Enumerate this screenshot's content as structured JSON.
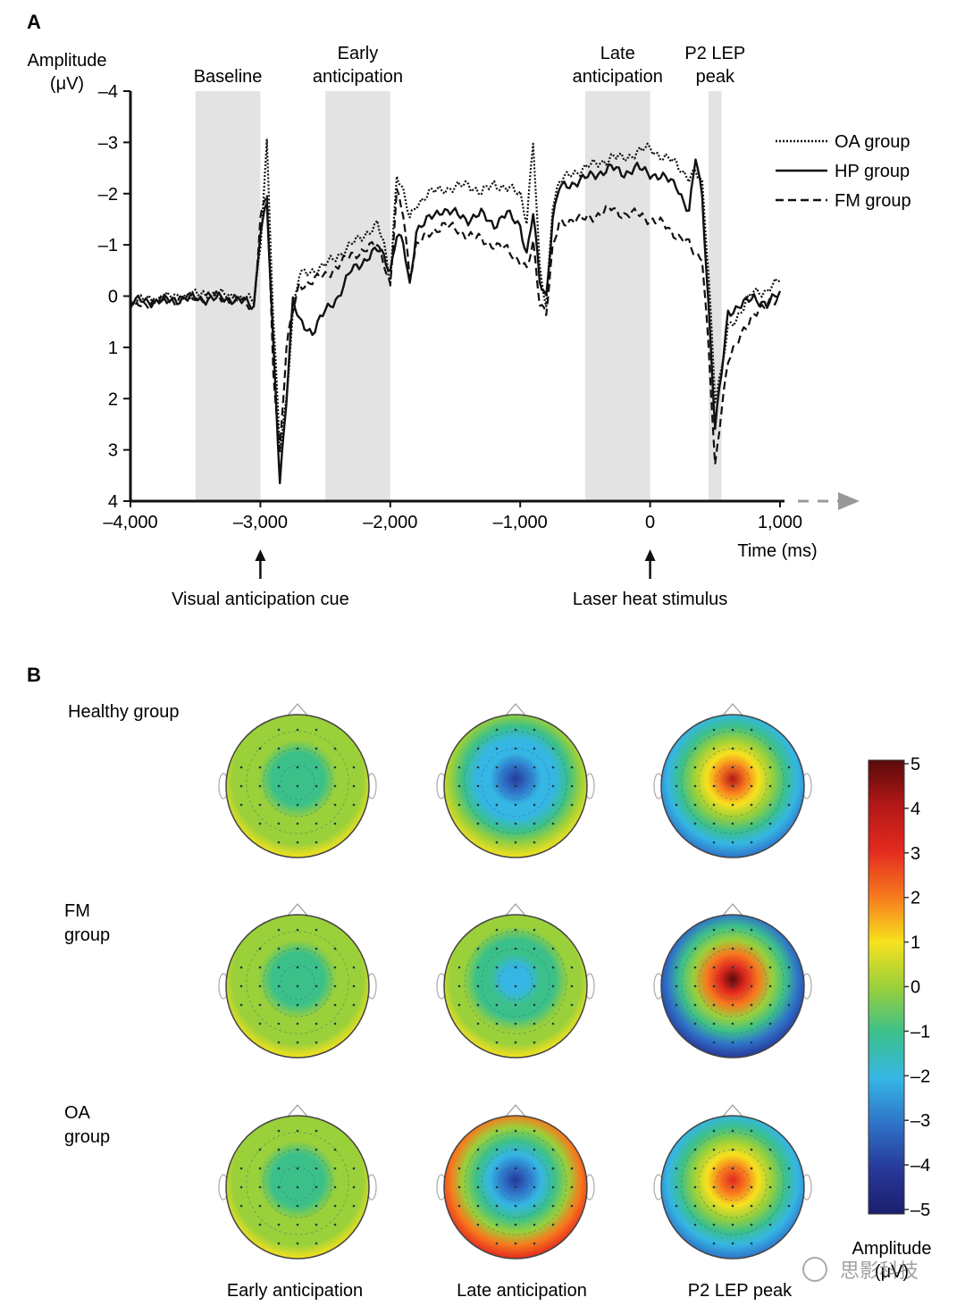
{
  "panel_a": {
    "panel_label": "A",
    "chart_data": {
      "type": "line",
      "xlabel": "Time (ms)",
      "ylabel_line1": "Amplitude",
      "ylabel_line2": "(μV)",
      "xlim": [
        -4000,
        1000
      ],
      "ylim": [
        -4,
        4
      ],
      "y_inverted": true,
      "x_ticks": [
        -4000,
        -3000,
        -2000,
        -1000,
        0,
        1000
      ],
      "x_tick_labels": [
        "–4,000",
        "–3,000",
        "–2,000",
        "–1,000",
        "0",
        "1,000"
      ],
      "y_ticks": [
        -4,
        -3,
        -2,
        -1,
        0,
        1,
        2,
        3,
        4
      ],
      "y_tick_labels": [
        "–4",
        "–3",
        "–2",
        "–1",
        "0",
        "1",
        "2",
        "3",
        "4"
      ],
      "windows": [
        {
          "label": [
            "Baseline"
          ],
          "start": -3500,
          "end": -3000
        },
        {
          "label": [
            "Early",
            "anticipation"
          ],
          "start": -2500,
          "end": -2000
        },
        {
          "label": [
            "Late",
            "anticipation"
          ],
          "start": -500,
          "end": 0
        },
        {
          "label": [
            "P2 LEP",
            "peak"
          ],
          "start": 450,
          "end": 550
        }
      ],
      "annotations": [
        {
          "text": "Visual anticipation cue",
          "x": -3000
        },
        {
          "text": "Laser heat stimulus",
          "x": 0
        }
      ],
      "legend_position": "top-right",
      "series": [
        {
          "name": "OA group",
          "style": "dotted",
          "x": [
            -4000,
            -3800,
            -3600,
            -3400,
            -3200,
            -3050,
            -3000,
            -2950,
            -2900,
            -2850,
            -2800,
            -2750,
            -2700,
            -2600,
            -2500,
            -2400,
            -2300,
            -2200,
            -2100,
            -2050,
            -2000,
            -1950,
            -1900,
            -1850,
            -1800,
            -1700,
            -1600,
            -1500,
            -1400,
            -1300,
            -1200,
            -1100,
            -1000,
            -950,
            -900,
            -850,
            -800,
            -750,
            -700,
            -600,
            -500,
            -400,
            -300,
            -200,
            -100,
            0,
            100,
            200,
            300,
            350,
            400,
            450,
            500,
            550,
            600,
            700,
            800,
            900,
            1000
          ],
          "y": [
            0.1,
            0.05,
            0,
            -0.05,
            0,
            0.1,
            -1.0,
            -3.0,
            0.5,
            3.0,
            2.0,
            0.3,
            -0.4,
            -0.5,
            -0.6,
            -0.8,
            -1.0,
            -1.2,
            -1.4,
            -1.0,
            -0.3,
            -2.4,
            -2.0,
            -1.5,
            -1.8,
            -2.0,
            -2.1,
            -2.1,
            -2.2,
            -2.0,
            -2.2,
            -2.1,
            -2.0,
            -1.5,
            -3.0,
            -0.5,
            0.2,
            -1.8,
            -2.2,
            -2.4,
            -2.5,
            -2.6,
            -2.7,
            -2.7,
            -2.8,
            -2.9,
            -2.7,
            -2.6,
            -2.3,
            -2.4,
            -2.2,
            -0.5,
            2.0,
            1.5,
            0.6,
            0.3,
            -0.1,
            -0.1,
            -0.3
          ]
        },
        {
          "name": "HP group",
          "style": "solid",
          "x": [
            -4000,
            -3800,
            -3600,
            -3400,
            -3200,
            -3050,
            -3000,
            -2950,
            -2900,
            -2850,
            -2800,
            -2750,
            -2700,
            -2600,
            -2500,
            -2400,
            -2300,
            -2200,
            -2100,
            -2050,
            -2000,
            -1950,
            -1900,
            -1850,
            -1800,
            -1700,
            -1600,
            -1500,
            -1400,
            -1300,
            -1200,
            -1100,
            -1000,
            -950,
            -900,
            -850,
            -800,
            -750,
            -700,
            -600,
            -500,
            -400,
            -300,
            -200,
            -100,
            0,
            100,
            200,
            300,
            350,
            400,
            450,
            500,
            550,
            600,
            700,
            800,
            900,
            1000
          ],
          "y": [
            0.1,
            0.1,
            0.05,
            0.05,
            0.05,
            0.2,
            -1.3,
            -1.8,
            1.0,
            3.6,
            2.0,
            0.1,
            0.5,
            0.7,
            0.3,
            0,
            -0.5,
            -0.7,
            -0.9,
            -0.8,
            -0.5,
            -1.2,
            -1.0,
            -0.2,
            -1.3,
            -1.5,
            -1.7,
            -1.6,
            -1.5,
            -1.6,
            -1.4,
            -1.6,
            -1.4,
            -0.8,
            -1.6,
            -0.3,
            0,
            -1.5,
            -2.1,
            -2.2,
            -2.3,
            -2.4,
            -2.5,
            -2.4,
            -2.5,
            -2.4,
            -2.3,
            -2.2,
            -1.6,
            -2.7,
            -2.0,
            0.2,
            2.6,
            1.5,
            0.3,
            0.2,
            0,
            0.2,
            -0.1
          ]
        },
        {
          "name": "FM group",
          "style": "dashed",
          "x": [
            -4000,
            -3800,
            -3600,
            -3400,
            -3200,
            -3050,
            -3000,
            -2950,
            -2900,
            -2850,
            -2800,
            -2750,
            -2700,
            -2600,
            -2500,
            -2400,
            -2300,
            -2200,
            -2100,
            -2050,
            -2000,
            -1950,
            -1900,
            -1850,
            -1800,
            -1700,
            -1600,
            -1500,
            -1400,
            -1300,
            -1200,
            -1100,
            -1000,
            -950,
            -900,
            -850,
            -800,
            -750,
            -700,
            -600,
            -500,
            -400,
            -300,
            -200,
            -100,
            0,
            100,
            200,
            300,
            350,
            400,
            450,
            500,
            550,
            600,
            700,
            800,
            900,
            1000
          ],
          "y": [
            0.2,
            0.1,
            0.05,
            0,
            0.05,
            0.2,
            -1.5,
            -2.0,
            1.5,
            3.0,
            1.0,
            0.3,
            -0.2,
            -0.3,
            -0.4,
            -0.6,
            -0.8,
            -0.9,
            -1.0,
            -0.7,
            -0.2,
            -2.0,
            -1.6,
            -0.4,
            -1.0,
            -1.2,
            -1.4,
            -1.3,
            -1.2,
            -1.1,
            -1.0,
            -0.9,
            -0.7,
            -0.5,
            -1.0,
            0.1,
            0.3,
            -0.9,
            -1.4,
            -1.5,
            -1.5,
            -1.6,
            -1.7,
            -1.6,
            -1.6,
            -1.5,
            -1.4,
            -1.2,
            -1.0,
            -0.8,
            -0.8,
            1.0,
            3.4,
            2.2,
            1.2,
            0.8,
            0.3,
            0.2,
            0
          ]
        }
      ]
    }
  },
  "panel_b": {
    "panel_label": "B",
    "row_labels": [
      [
        "Healthy group"
      ],
      [
        "FM",
        "group"
      ],
      [
        "OA",
        "group"
      ]
    ],
    "column_labels": [
      "Early anticipation",
      "Late anticipation",
      "P2 LEP peak"
    ],
    "colorbar": {
      "label": "Amplitude",
      "units": "(μV)",
      "min": -5,
      "max": 5,
      "tick_labels": [
        "5",
        "4",
        "3",
        "2",
        "1",
        "0",
        "–1",
        "–2",
        "–3",
        "–4",
        "–5"
      ]
    },
    "chart_data": {
      "type": "heatmap",
      "description_rows": [
        "Healthy group",
        "FM group",
        "OA group"
      ],
      "description_cols": [
        "Early anticipation",
        "Late anticipation",
        "P2 LEP peak"
      ],
      "central_amplitude": [
        [
          -1.5,
          -3.8,
          3.5
        ],
        [
          -1.3,
          -2.2,
          4.6
        ],
        [
          -1.5,
          -4.2,
          3.4
        ]
      ],
      "periphery_amplitude": [
        [
          0.5,
          0.5,
          -3.5
        ],
        [
          0.5,
          0.5,
          -4.2
        ],
        [
          0.8,
          2.8,
          -2.8
        ]
      ]
    }
  },
  "watermark": "思影科技"
}
